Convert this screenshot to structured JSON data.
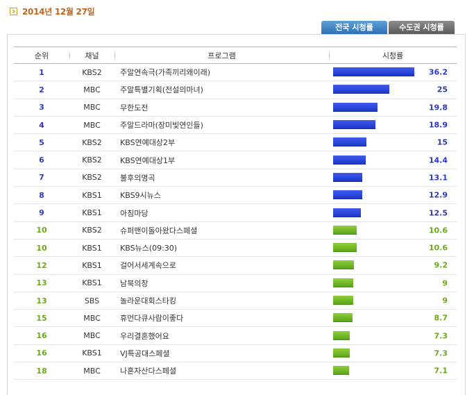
{
  "date": "2014년 12월 27일",
  "tabs": {
    "national": "전국 시청률",
    "metro": "수도권 시청률"
  },
  "columns": {
    "rank": "순위",
    "channel": "채널",
    "program": "프로그램",
    "rating": "시청률"
  },
  "rating_max": 36.2,
  "colors": {
    "top_bar": "#2a44e0",
    "other_bar": "#6cb52a",
    "top_text": "#2a37c9",
    "other_text": "#6aaa18",
    "date": "#c0651a"
  },
  "rows": [
    {
      "rank": "1",
      "channel": "KBS2",
      "program": "주말연속극(가족끼리왜이래)",
      "rating": "36.2",
      "group": "blue"
    },
    {
      "rank": "2",
      "channel": "MBC",
      "program": "주말특별기획(전설의마녀)",
      "rating": "25",
      "group": "blue"
    },
    {
      "rank": "3",
      "channel": "MBC",
      "program": "무한도전",
      "rating": "19.8",
      "group": "blue"
    },
    {
      "rank": "4",
      "channel": "MBC",
      "program": "주말드라마(장미빛연인들)",
      "rating": "18.9",
      "group": "blue"
    },
    {
      "rank": "5",
      "channel": "KBS2",
      "program": "KBS연예대상2부",
      "rating": "15",
      "group": "blue"
    },
    {
      "rank": "6",
      "channel": "KBS2",
      "program": "KBS연예대상1부",
      "rating": "14.4",
      "group": "blue"
    },
    {
      "rank": "7",
      "channel": "KBS2",
      "program": "불후의명곡",
      "rating": "13.1",
      "group": "blue"
    },
    {
      "rank": "8",
      "channel": "KBS1",
      "program": "KBS9시뉴스",
      "rating": "12.9",
      "group": "blue"
    },
    {
      "rank": "9",
      "channel": "KBS1",
      "program": "아침마당",
      "rating": "12.5",
      "group": "blue"
    },
    {
      "rank": "10",
      "channel": "KBS2",
      "program": "슈퍼맨이돌아왔다스페셜",
      "rating": "10.6",
      "group": "green"
    },
    {
      "rank": "10",
      "channel": "KBS1",
      "program": "KBS뉴스(09:30)",
      "rating": "10.6",
      "group": "green"
    },
    {
      "rank": "12",
      "channel": "KBS1",
      "program": "걸어서세계속으로",
      "rating": "9.2",
      "group": "green"
    },
    {
      "rank": "13",
      "channel": "KBS1",
      "program": "남북의창",
      "rating": "9",
      "group": "green"
    },
    {
      "rank": "13",
      "channel": "SBS",
      "program": "놀라운대회스타킹",
      "rating": "9",
      "group": "green"
    },
    {
      "rank": "15",
      "channel": "MBC",
      "program": "휴먼다큐사람이좋다",
      "rating": "8.7",
      "group": "green"
    },
    {
      "rank": "16",
      "channel": "MBC",
      "program": "우리결혼했어요",
      "rating": "7.3",
      "group": "green"
    },
    {
      "rank": "16",
      "channel": "KBS1",
      "program": "VJ특공대스페셜",
      "rating": "7.3",
      "group": "green"
    },
    {
      "rank": "18",
      "channel": "MBC",
      "program": "나혼자산다스페셜",
      "rating": "7.1",
      "group": "green"
    }
  ]
}
